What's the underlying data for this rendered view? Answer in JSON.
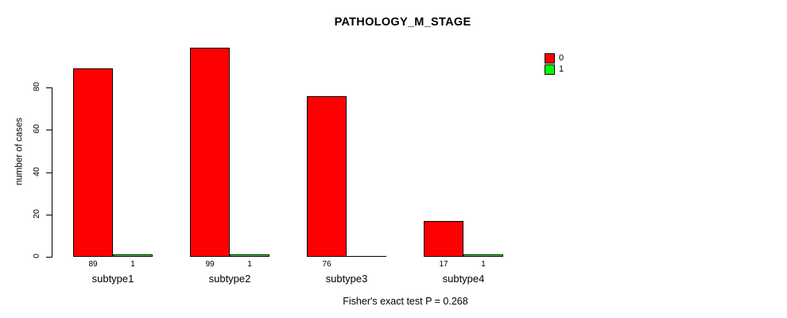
{
  "chart_data": {
    "type": "bar",
    "title": "PATHOLOGY_M_STAGE",
    "xlabel": "",
    "ylabel": "number of cases",
    "categories": [
      "subtype1",
      "subtype2",
      "subtype3",
      "subtype4"
    ],
    "series": [
      {
        "name": "0",
        "color": "#FF0000",
        "values": [
          89,
          99,
          76,
          17
        ]
      },
      {
        "name": "1",
        "color": "#00FF00",
        "values": [
          1,
          1,
          0,
          1
        ]
      }
    ],
    "ylim": [
      0,
      99
    ],
    "yticks": [
      0,
      20,
      40,
      60,
      80
    ],
    "grid": false,
    "legend_position": "top-right",
    "annotation": "Fisher's exact test P = 0.268"
  }
}
